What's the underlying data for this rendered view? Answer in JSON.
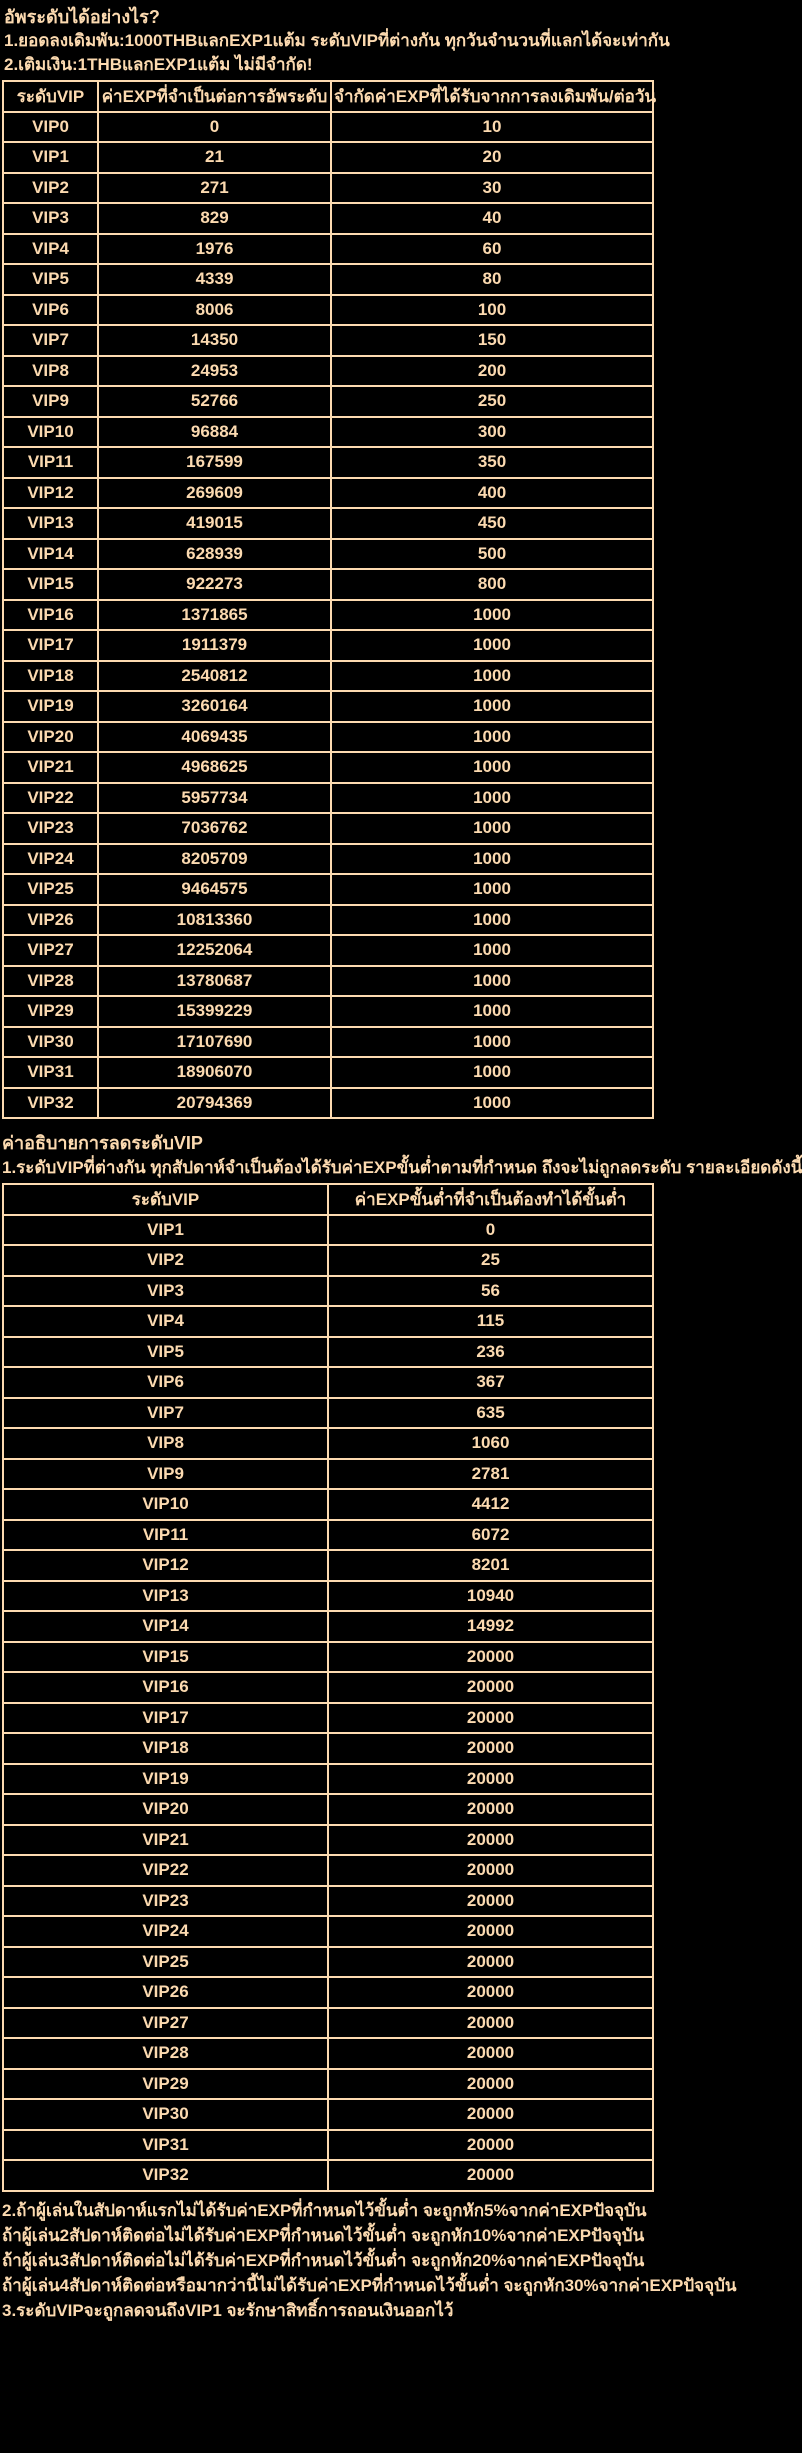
{
  "colors": {
    "background": "#000000",
    "text": "#fcdab0",
    "table_border": "#fcdab0"
  },
  "intro": {
    "title": "อัพระดับได้อย่างไร?",
    "line1": "1.ยอดลงเดิมพัน:1000THBแลกEXP1แต้ม ระดับVIPที่ต่างกัน ทุกวันจำนวนที่แลกได้จะเท่ากัน",
    "line2": "2.เติมเงิน:1THBแลกEXP1แต้ม ไม่มีจำกัด!"
  },
  "upgrade_table": {
    "headers": [
      "ระดับVIP",
      "ค่าEXPที่จำเป็นต่อการอัพระดับ",
      "จำกัดค่าEXPที่ได้รับจากการลงเดิมพัน/ต่อวัน"
    ],
    "rows": [
      [
        "VIP0",
        "0",
        "10"
      ],
      [
        "VIP1",
        "21",
        "20"
      ],
      [
        "VIP2",
        "271",
        "30"
      ],
      [
        "VIP3",
        "829",
        "40"
      ],
      [
        "VIP4",
        "1976",
        "60"
      ],
      [
        "VIP5",
        "4339",
        "80"
      ],
      [
        "VIP6",
        "8006",
        "100"
      ],
      [
        "VIP7",
        "14350",
        "150"
      ],
      [
        "VIP8",
        "24953",
        "200"
      ],
      [
        "VIP9",
        "52766",
        "250"
      ],
      [
        "VIP10",
        "96884",
        "300"
      ],
      [
        "VIP11",
        "167599",
        "350"
      ],
      [
        "VIP12",
        "269609",
        "400"
      ],
      [
        "VIP13",
        "419015",
        "450"
      ],
      [
        "VIP14",
        "628939",
        "500"
      ],
      [
        "VIP15",
        "922273",
        "800"
      ],
      [
        "VIP16",
        "1371865",
        "1000"
      ],
      [
        "VIP17",
        "1911379",
        "1000"
      ],
      [
        "VIP18",
        "2540812",
        "1000"
      ],
      [
        "VIP19",
        "3260164",
        "1000"
      ],
      [
        "VIP20",
        "4069435",
        "1000"
      ],
      [
        "VIP21",
        "4968625",
        "1000"
      ],
      [
        "VIP22",
        "5957734",
        "1000"
      ],
      [
        "VIP23",
        "7036762",
        "1000"
      ],
      [
        "VIP24",
        "8205709",
        "1000"
      ],
      [
        "VIP25",
        "9464575",
        "1000"
      ],
      [
        "VIP26",
        "10813360",
        "1000"
      ],
      [
        "VIP27",
        "12252064",
        "1000"
      ],
      [
        "VIP28",
        "13780687",
        "1000"
      ],
      [
        "VIP29",
        "15399229",
        "1000"
      ],
      [
        "VIP30",
        "17107690",
        "1000"
      ],
      [
        "VIP31",
        "18906070",
        "1000"
      ],
      [
        "VIP32",
        "20794369",
        "1000"
      ]
    ]
  },
  "downgrade": {
    "title": "ค่าอธิบายการลดระดับVIP",
    "line1": "1.ระดับVIPที่ต่างกัน ทุกสัปดาห์จำเป็นต้องได้รับค่าEXPขั้นต่ำตามที่กำหนด ถึงจะไม่ถูกลดระดับ รายละเอียดดังนี้"
  },
  "weekly_table": {
    "headers": [
      "ระดับVIP",
      "ค่าEXPขั้นต่ำที่จำเป็นต้องทำได้ขั้นต่ำ"
    ],
    "rows": [
      [
        "VIP1",
        "0"
      ],
      [
        "VIP2",
        "25"
      ],
      [
        "VIP3",
        "56"
      ],
      [
        "VIP4",
        "115"
      ],
      [
        "VIP5",
        "236"
      ],
      [
        "VIP6",
        "367"
      ],
      [
        "VIP7",
        "635"
      ],
      [
        "VIP8",
        "1060"
      ],
      [
        "VIP9",
        "2781"
      ],
      [
        "VIP10",
        "4412"
      ],
      [
        "VIP11",
        "6072"
      ],
      [
        "VIP12",
        "8201"
      ],
      [
        "VIP13",
        "10940"
      ],
      [
        "VIP14",
        "14992"
      ],
      [
        "VIP15",
        "20000"
      ],
      [
        "VIP16",
        "20000"
      ],
      [
        "VIP17",
        "20000"
      ],
      [
        "VIP18",
        "20000"
      ],
      [
        "VIP19",
        "20000"
      ],
      [
        "VIP20",
        "20000"
      ],
      [
        "VIP21",
        "20000"
      ],
      [
        "VIP22",
        "20000"
      ],
      [
        "VIP23",
        "20000"
      ],
      [
        "VIP24",
        "20000"
      ],
      [
        "VIP25",
        "20000"
      ],
      [
        "VIP26",
        "20000"
      ],
      [
        "VIP27",
        "20000"
      ],
      [
        "VIP28",
        "20000"
      ],
      [
        "VIP29",
        "20000"
      ],
      [
        "VIP30",
        "20000"
      ],
      [
        "VIP31",
        "20000"
      ],
      [
        "VIP32",
        "20000"
      ]
    ]
  },
  "footer": {
    "lines": [
      "2.ถ้าผู้เล่นในสัปดาห์แรกไม่ได้รับค่าEXPที่กำหนดไว้ขั้นต่ำ จะถูกหัก5%จากค่าEXPปัจจุบัน",
      "ถ้าผู้เล่น2สัปดาห์ติดต่อไม่ได้รับค่าEXPที่กำหนดไว้ขั้นต่ำ จะถูกหัก10%จากค่าEXPปัจจุบัน",
      "ถ้าผู้เล่น3สัปดาห์ติดต่อไม่ได้รับค่าEXPที่กำหนดไว้ขั้นต่ำ จะถูกหัก20%จากค่าEXPปัจจุบัน",
      "ถ้าผู้เล่น4สัปดาห์ติดต่อหรือมากว่านี้ไม่ได้รับค่าEXPที่กำหนดไว้ขั้นต่ำ จะถูกหัก30%จากค่าEXPปัจจุบัน",
      "3.ระดับVIPจะถูกลดจนถึงVIP1 จะรักษาสิทธิ์การถอนเงินออกไว้"
    ]
  }
}
